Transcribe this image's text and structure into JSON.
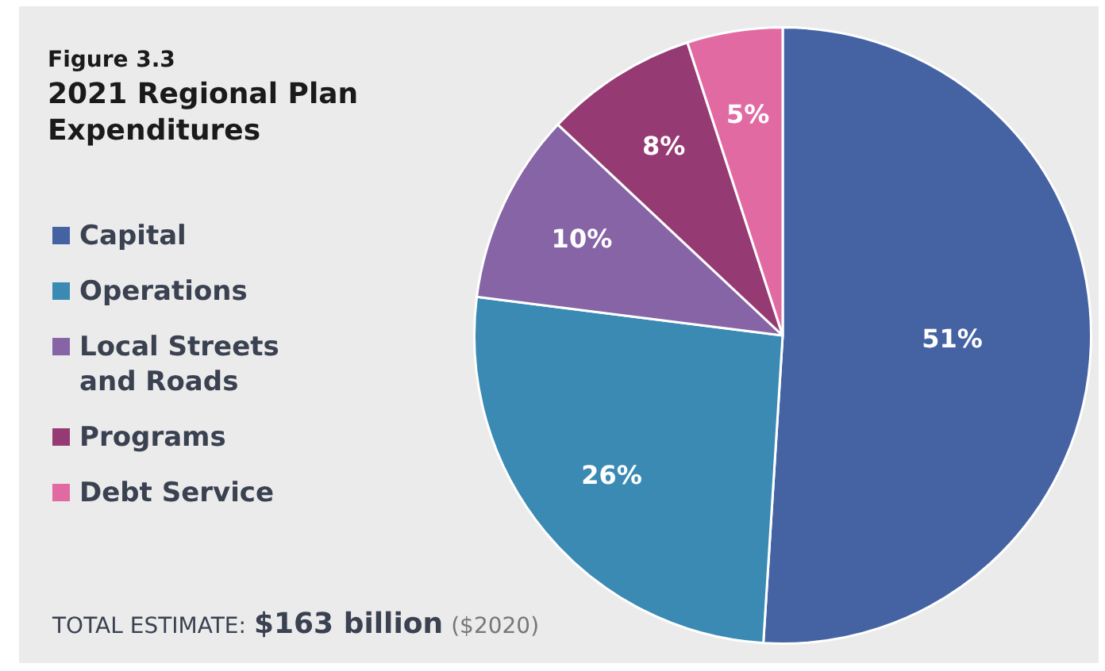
{
  "chart_data": {
    "type": "pie",
    "title": "Figure 3.3",
    "subtitle": "2021 Regional Plan Expenditures",
    "categories": [
      "Capital",
      "Operations",
      "Local Streets and Roads",
      "Programs",
      "Debt Service"
    ],
    "values": [
      51,
      26,
      10,
      8,
      5
    ],
    "colors": [
      "#4563a3",
      "#3a8ab4",
      "#8764a6",
      "#963a74",
      "#e26aa3"
    ],
    "value_labels": [
      "51%",
      "26%",
      "10%",
      "8%",
      "5%"
    ],
    "legend": "left",
    "annotations": [
      "TOTAL ESTIMATE:",
      "$163 billion",
      "($2020)"
    ]
  }
}
